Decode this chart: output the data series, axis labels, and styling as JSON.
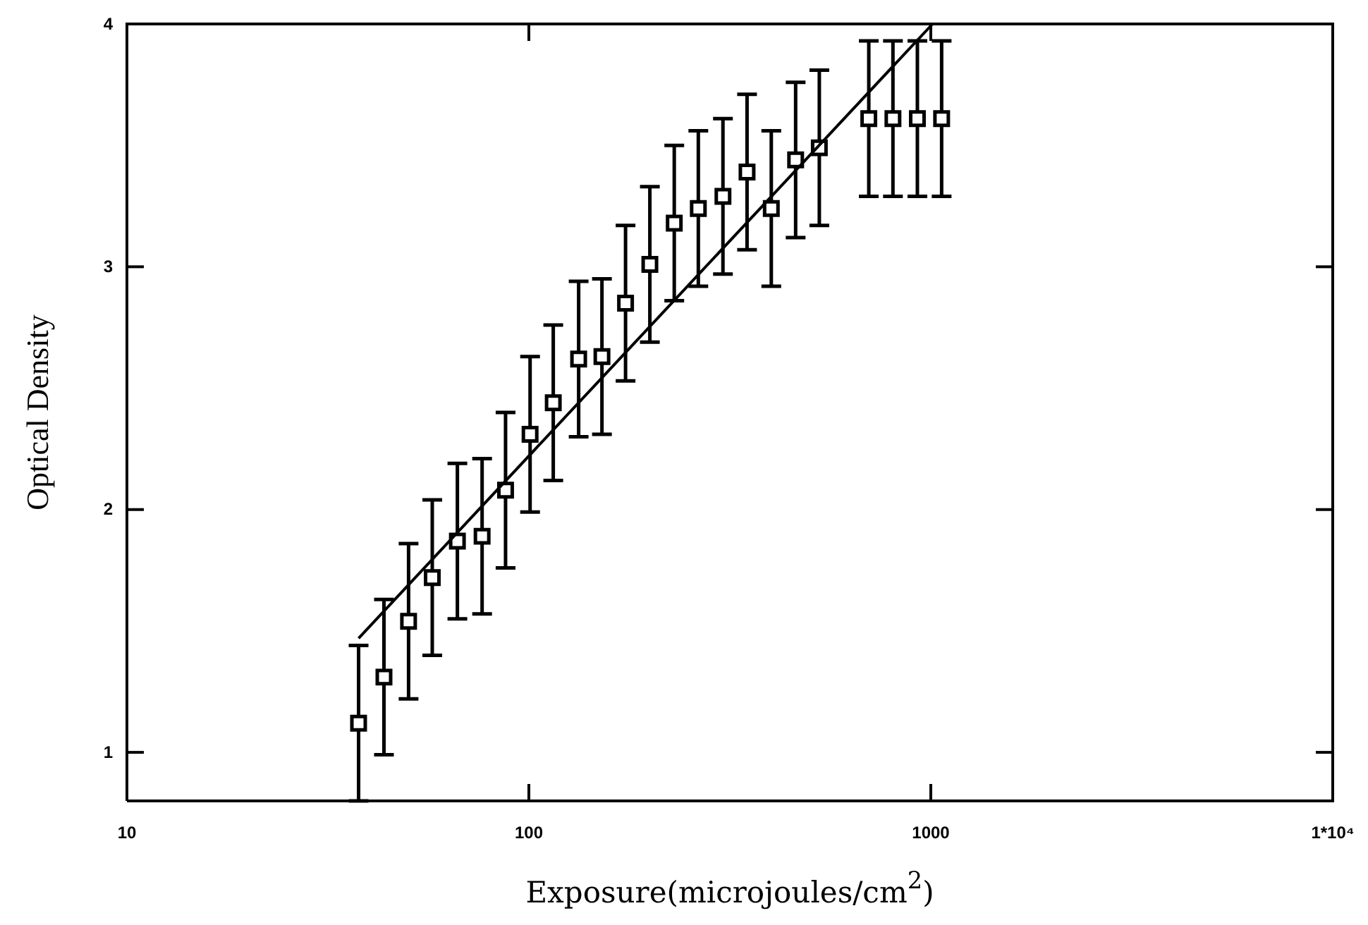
{
  "chart_data": {
    "type": "scatter",
    "xlabel": "Exposure(microjoules/cm$^{2}$)",
    "ylabel": "Optical Density",
    "log": "x",
    "xlim": [
      10,
      10000
    ],
    "ylim": [
      0.8,
      4
    ],
    "xticks": [
      10,
      100,
      1000,
      {
        "value": 10000,
        "label": "1*10⁴"
      }
    ],
    "yticks": [
      1,
      2,
      3,
      4
    ],
    "series": [
      {
        "marker": "square",
        "color": "#000000",
        "x": [
          37.7,
          43.6,
          50.2,
          57.5,
          66.4,
          76.5,
          87.5,
          100.7,
          115,
          133,
          152,
          174,
          200,
          230,
          264,
          304,
          349,
          401,
          461,
          528,
          701,
          805,
          926,
          1064
        ],
        "values": [
          1.12,
          1.31,
          1.54,
          1.72,
          1.87,
          1.89,
          2.08,
          2.31,
          2.44,
          2.62,
          2.63,
          2.85,
          3.01,
          3.18,
          3.24,
          3.29,
          3.39,
          3.24,
          3.44,
          3.49,
          3.61,
          3.61,
          3.61,
          3.61
        ],
        "errors": [
          0.32,
          0.32,
          0.32,
          0.32,
          0.32,
          0.32,
          0.32,
          0.32,
          0.32,
          0.32,
          0.32,
          0.32,
          0.32,
          0.32,
          0.32,
          0.32,
          0.32,
          0.32,
          0.32,
          0.32,
          0.32,
          0.32,
          0.32,
          0.32
        ]
      },
      {
        "type": "line",
        "color": "#000000",
        "x": [
          37.7,
          1010
        ],
        "values": [
          1.47,
          4.0
        ]
      }
    ]
  }
}
